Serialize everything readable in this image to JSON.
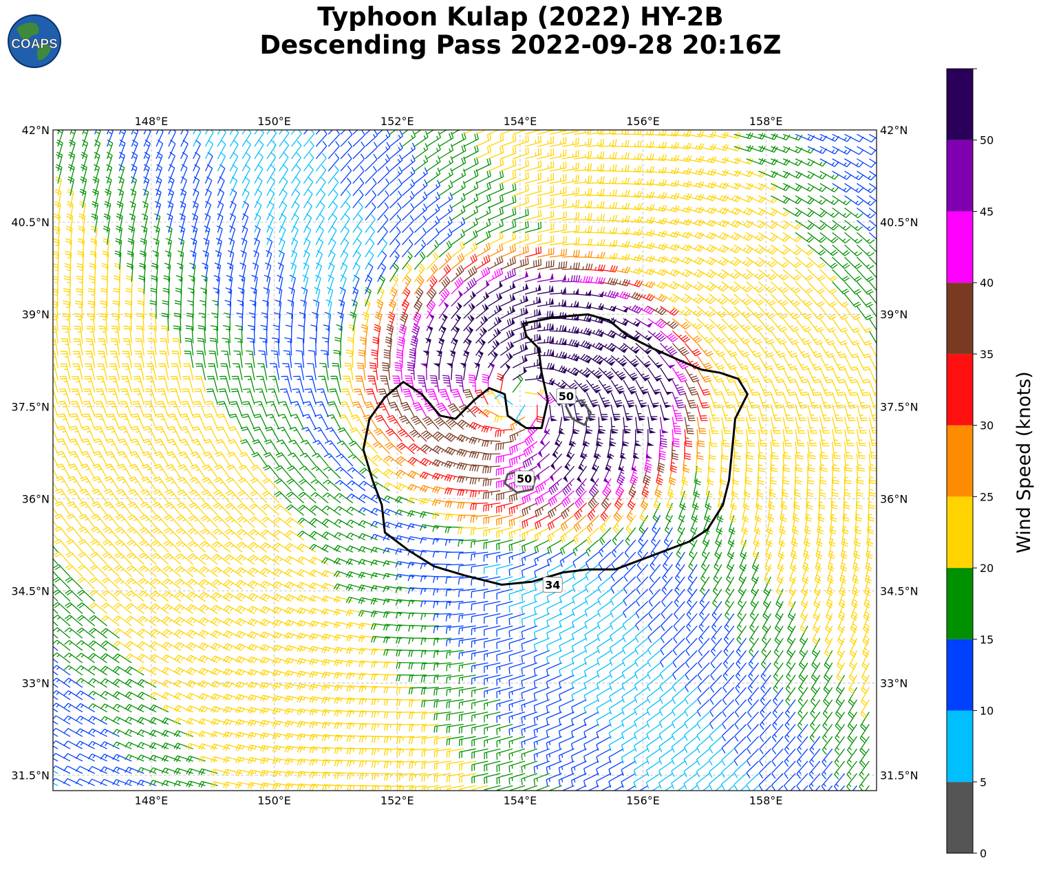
{
  "title_line1": "Typhoon Kulap (2022) HY-2B",
  "title_line2": "Descending Pass 2022-09-28 20:16Z",
  "logo_text": "COAPS",
  "map": {
    "lon_range": [
      146.4,
      159.8
    ],
    "lat_range": [
      31.25,
      42.0
    ],
    "lon_ticks": [
      148,
      150,
      152,
      154,
      156,
      158
    ],
    "lon_tick_labels": [
      "148°E",
      "150°E",
      "152°E",
      "154°E",
      "156°E",
      "158°E"
    ],
    "lat_ticks": [
      42.0,
      40.5,
      39.0,
      37.5,
      36.0,
      34.5,
      33.0,
      31.5
    ],
    "lat_tick_labels": [
      "42°N",
      "40.5°N",
      "39°N",
      "37.5°N",
      "36°N",
      "34.5°N",
      "33°N",
      "31.5°N"
    ],
    "gridlines": true,
    "storm_center": [
      154.0,
      37.6
    ],
    "contour_labels": [
      {
        "text": "50",
        "lon": 154.75,
        "lat": 37.67
      },
      {
        "text": "50",
        "lon": 154.07,
        "lat": 36.33
      },
      {
        "text": "34",
        "lon": 154.53,
        "lat": 34.6
      }
    ],
    "contour_34kt": [
      [
        152.1,
        37.9
      ],
      [
        152.4,
        37.7
      ],
      [
        152.7,
        37.35
      ],
      [
        152.95,
        37.3
      ],
      [
        153.25,
        37.6
      ],
      [
        153.5,
        37.8
      ],
      [
        153.75,
        37.7
      ],
      [
        153.8,
        37.35
      ],
      [
        154.1,
        37.15
      ],
      [
        154.35,
        37.15
      ],
      [
        154.45,
        37.6
      ],
      [
        154.35,
        38.05
      ],
      [
        154.3,
        38.45
      ],
      [
        154.1,
        38.65
      ],
      [
        154.05,
        38.85
      ],
      [
        154.55,
        38.95
      ],
      [
        155.1,
        39.0
      ],
      [
        155.45,
        38.9
      ],
      [
        155.75,
        38.65
      ],
      [
        156.15,
        38.45
      ],
      [
        156.6,
        38.25
      ],
      [
        156.95,
        38.1
      ],
      [
        157.25,
        38.05
      ],
      [
        157.55,
        37.95
      ],
      [
        157.7,
        37.7
      ],
      [
        157.5,
        37.3
      ],
      [
        157.45,
        36.8
      ],
      [
        157.4,
        36.3
      ],
      [
        157.3,
        35.9
      ],
      [
        157.05,
        35.5
      ],
      [
        156.75,
        35.3
      ],
      [
        156.35,
        35.15
      ],
      [
        155.95,
        35.0
      ],
      [
        155.55,
        34.85
      ],
      [
        155.1,
        34.85
      ],
      [
        154.7,
        34.8
      ],
      [
        154.2,
        34.65
      ],
      [
        153.7,
        34.6
      ],
      [
        153.1,
        34.75
      ],
      [
        152.6,
        34.9
      ],
      [
        152.2,
        35.15
      ],
      [
        151.8,
        35.45
      ],
      [
        151.75,
        35.9
      ],
      [
        151.6,
        36.3
      ],
      [
        151.45,
        36.8
      ],
      [
        151.55,
        37.3
      ],
      [
        151.8,
        37.65
      ],
      [
        152.1,
        37.9
      ]
    ],
    "contour_50kt_a": [
      [
        154.75,
        37.5
      ],
      [
        154.85,
        37.3
      ],
      [
        155.05,
        37.2
      ],
      [
        155.15,
        37.4
      ],
      [
        155.0,
        37.6
      ],
      [
        154.75,
        37.55
      ]
    ],
    "contour_50kt_b": [
      [
        153.75,
        36.25
      ],
      [
        153.95,
        36.1
      ],
      [
        154.2,
        36.15
      ],
      [
        154.25,
        36.35
      ],
      [
        154.0,
        36.45
      ],
      [
        153.8,
        36.4
      ]
    ],
    "barb_stride_lon": 0.2,
    "barb_stride_lat": 0.2,
    "barb_shaft_deg": 0.27
  },
  "colorbar": {
    "label": "Wind Speed (knots)",
    "bounds": [
      0,
      5,
      10,
      15,
      20,
      25,
      30,
      35,
      40,
      45,
      50,
      55
    ],
    "colors": [
      "#555555",
      "#00bfff",
      "#0040ff",
      "#009000",
      "#ffd400",
      "#ff8c00",
      "#ff1010",
      "#7a3a22",
      "#ff00ff",
      "#8000b0",
      "#2a005a"
    ],
    "tick_values": [
      0,
      5,
      10,
      15,
      20,
      25,
      30,
      35,
      40,
      45,
      50
    ],
    "tick_labels": [
      "0",
      "5",
      "10",
      "15",
      "20",
      "25",
      "30",
      "35",
      "40",
      "45",
      "50"
    ]
  }
}
